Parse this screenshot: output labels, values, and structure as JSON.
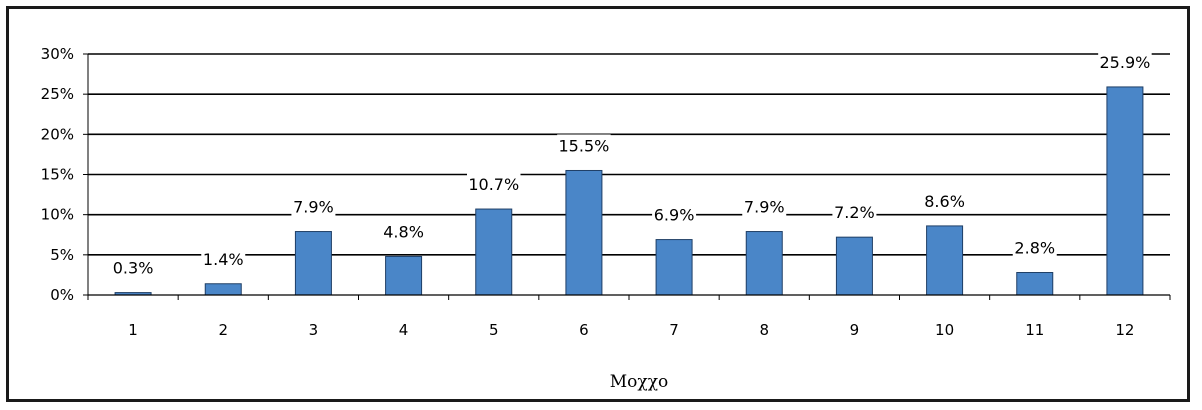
{
  "chart_data": {
    "type": "bar",
    "categories": [
      "1",
      "2",
      "3",
      "4",
      "5",
      "6",
      "7",
      "8",
      "9",
      "10",
      "11",
      "12"
    ],
    "values": [
      0.3,
      1.4,
      7.9,
      4.8,
      10.7,
      15.5,
      6.9,
      7.9,
      7.2,
      8.6,
      2.8,
      25.9
    ],
    "data_labels": [
      "0.3%",
      "1.4%",
      "7.9%",
      "4.8%",
      "10.7%",
      "15.5%",
      "6.9%",
      "7.9%",
      "7.2%",
      "8.6%",
      "2.8%",
      "25.9%"
    ],
    "y_ticks": [
      0,
      5,
      10,
      15,
      20,
      25,
      30
    ],
    "y_tick_labels": [
      "0%",
      "5%",
      "10%",
      "15%",
      "20%",
      "25%",
      "30%"
    ],
    "ylim": [
      0,
      30
    ],
    "xlabel": "Μοχχο",
    "ylabel": "",
    "title": "",
    "grid": true,
    "legend": "none",
    "bar_color": "#4a86c8",
    "bar_edge_color": "#1f3f66"
  }
}
